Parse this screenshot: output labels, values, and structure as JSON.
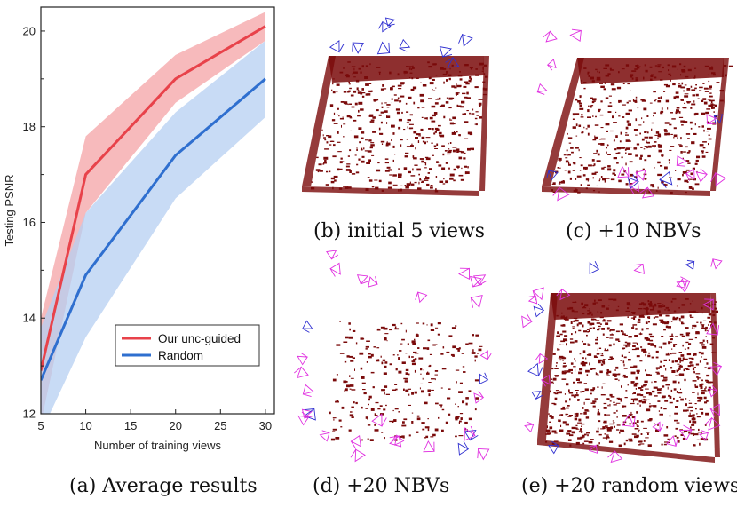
{
  "chart_data": {
    "type": "line",
    "xlabel": "Number of training views",
    "ylabel": "Testing PSNR",
    "xlim": [
      5,
      31
    ],
    "ylim": [
      12,
      20.5
    ],
    "xticks": [
      5,
      10,
      15,
      20,
      25,
      30
    ],
    "yticks": [
      12,
      14,
      16,
      18,
      20
    ],
    "legend_position": "bottom-right",
    "series": [
      {
        "name": "Our unc-guided",
        "color": "#e8424a",
        "band_color": "#f4a3a6",
        "x": [
          5,
          10,
          20,
          30
        ],
        "values": [
          12.9,
          17.0,
          19.0,
          20.1
        ],
        "lower": [
          11.8,
          16.2,
          18.5,
          19.8
        ],
        "upper": [
          14.0,
          17.8,
          19.5,
          20.4
        ]
      },
      {
        "name": "Random",
        "color": "#2f6fcf",
        "band_color": "#b6cff2",
        "x": [
          5,
          10,
          20,
          30
        ],
        "values": [
          12.7,
          14.9,
          17.4,
          19.0
        ],
        "lower": [
          11.6,
          13.6,
          16.5,
          18.2
        ],
        "upper": [
          13.8,
          16.2,
          18.3,
          19.8
        ]
      }
    ]
  },
  "captions": {
    "a": "(a) Average results",
    "b": "(b) initial 5 views",
    "c": "(c) +10 NBVs",
    "d": "(d) +20 NBVs",
    "e": "(e) +20 random views"
  },
  "colors": {
    "pointcloud": "#7a0a0a",
    "camera_blue": "#3030d0",
    "camera_magenta": "#e030e0"
  },
  "panels": [
    {
      "id": "b",
      "frustums": 9,
      "blue_ratio": 1.0
    },
    {
      "id": "c",
      "frustums": 18,
      "blue_ratio": 0.3
    },
    {
      "id": "d",
      "frustums": 30,
      "blue_ratio": 0.2
    },
    {
      "id": "e",
      "frustums": 30,
      "blue_ratio": 0.2
    }
  ]
}
